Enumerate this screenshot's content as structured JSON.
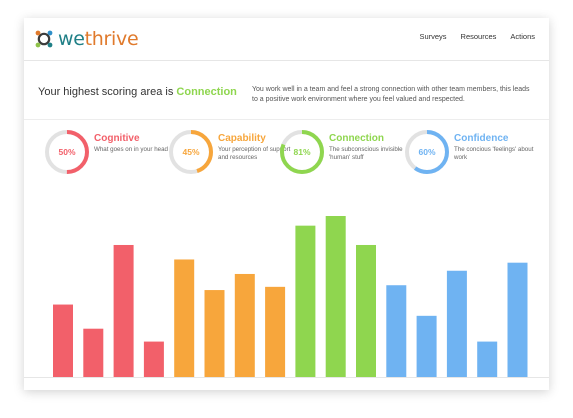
{
  "app": {
    "logo": {
      "we": "we",
      "thrive": "thrive",
      "icon": "wethrive-logo-icon"
    }
  },
  "nav": {
    "items": [
      "Surveys",
      "Resources",
      "Actions"
    ]
  },
  "headline": {
    "prefix": "Your highest scoring area is ",
    "area": "Connection",
    "description": "You work well in a team and feel a strong connection with other team members, this leads to a positive work environment where you feel valued and respected."
  },
  "metrics": [
    {
      "title": "Cognitive",
      "percent": "50%",
      "value": 50,
      "description": "What goes on in your head",
      "color": "#f2606a"
    },
    {
      "title": "Capability",
      "percent": "45%",
      "value": 45,
      "description": "Your perception of support and resources",
      "color": "#f7a63c"
    },
    {
      "title": "Connection",
      "percent": "81%",
      "value": 81,
      "description": "The subconscious invisible 'human' stuff",
      "color": "#8fd64f"
    },
    {
      "title": "Confidence",
      "percent": "60%",
      "value": 60,
      "description": "The concious 'feelings' about work",
      "color": "#6fb3f2"
    }
  ],
  "chart_data": {
    "type": "bar",
    "ylim": [
      0,
      100
    ],
    "grid": false,
    "groups": [
      {
        "name": "Cognitive",
        "color": "#f2606a",
        "values": [
          45,
          30,
          82,
          22
        ]
      },
      {
        "name": "Capability",
        "color": "#f7a63c",
        "values": [
          73,
          54,
          64,
          56
        ]
      },
      {
        "name": "Connection",
        "color": "#8fd64f",
        "values": [
          94,
          100,
          82
        ]
      },
      {
        "name": "Confidence",
        "color": "#6fb3f2",
        "values": [
          57,
          38,
          66,
          22,
          71
        ]
      }
    ]
  }
}
